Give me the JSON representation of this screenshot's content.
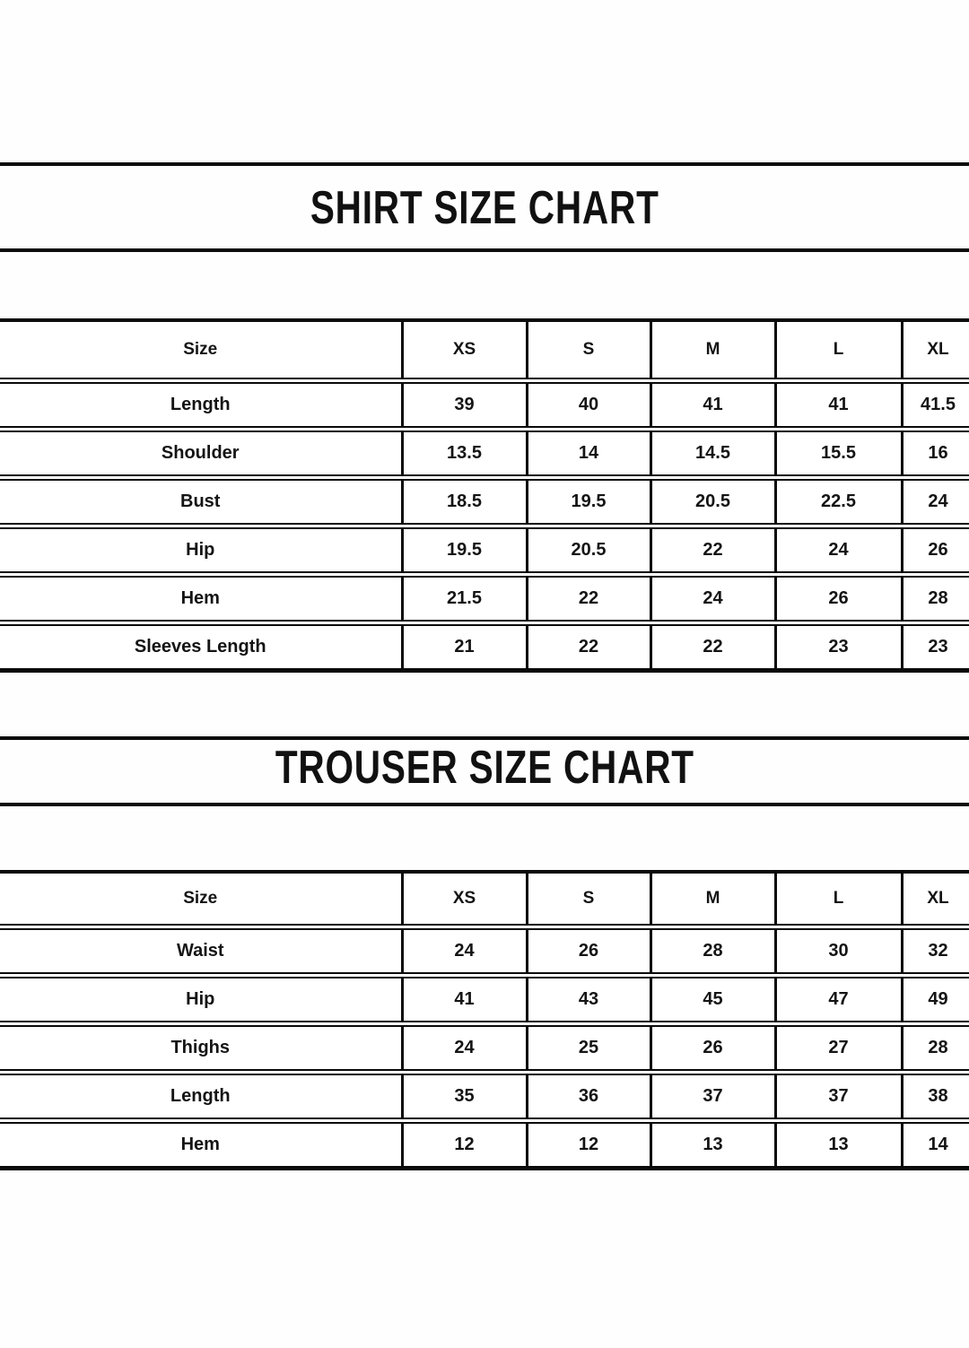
{
  "colors": {
    "background": "#ffffff",
    "text": "#111111",
    "border": "#0a0a0a"
  },
  "shirt": {
    "title": "SHIRT SIZE CHART",
    "columns": [
      "Size",
      "XS",
      "S",
      "M",
      "L",
      "XL"
    ],
    "rows": [
      {
        "label": "Length",
        "values": [
          "39",
          "40",
          "41",
          "41",
          "41.5"
        ]
      },
      {
        "label": "Shoulder",
        "values": [
          "13.5",
          "14",
          "14.5",
          "15.5",
          "16"
        ]
      },
      {
        "label": "Bust",
        "values": [
          "18.5",
          "19.5",
          "20.5",
          "22.5",
          "24"
        ]
      },
      {
        "label": "Hip",
        "values": [
          "19.5",
          "20.5",
          "22",
          "24",
          "26"
        ]
      },
      {
        "label": "Hem",
        "values": [
          "21.5",
          "22",
          "24",
          "26",
          "28"
        ]
      },
      {
        "label": "Sleeves Length",
        "values": [
          "21",
          "22",
          "22",
          "23",
          "23"
        ]
      }
    ]
  },
  "trouser": {
    "title": "TROUSER SIZE CHART",
    "columns": [
      "Size",
      "XS",
      "S",
      "M",
      "L",
      "XL"
    ],
    "rows": [
      {
        "label": "Waist",
        "values": [
          "24",
          "26",
          "28",
          "30",
          "32"
        ]
      },
      {
        "label": "Hip",
        "values": [
          "41",
          "43",
          "45",
          "47",
          "49"
        ]
      },
      {
        "label": "Thighs",
        "values": [
          "24",
          "25",
          "26",
          "27",
          "28"
        ]
      },
      {
        "label": "Length",
        "values": [
          "35",
          "36",
          "37",
          "37",
          "38"
        ]
      },
      {
        "label": "Hem",
        "values": [
          "12",
          "12",
          "13",
          "13",
          "14"
        ]
      }
    ]
  }
}
